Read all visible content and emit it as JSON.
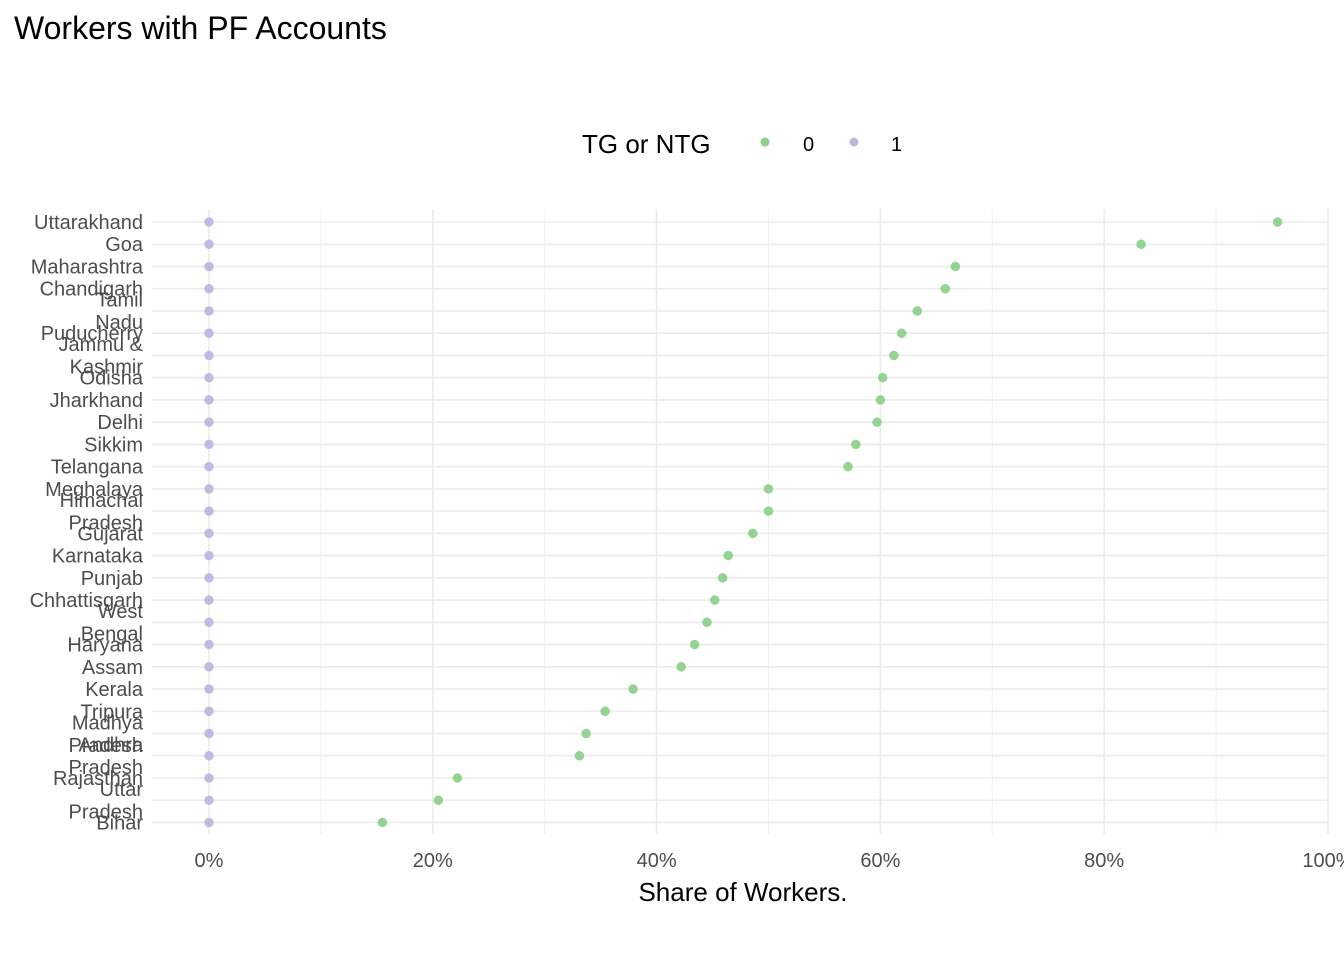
{
  "chart_data": {
    "type": "scatter",
    "title": "Workers with PF Accounts",
    "xlabel": "Share of Workers.",
    "ylabel": "",
    "xlim": [
      -0.05,
      1.0
    ],
    "x_ticks": [
      "0%",
      "20%",
      "40%",
      "60%",
      "80%",
      "100%"
    ],
    "x_tick_values": [
      0,
      0.2,
      0.4,
      0.6,
      0.8,
      1.0
    ],
    "grid": true,
    "legend": {
      "title": "TG or NTG",
      "position": "top"
    },
    "categories": [
      [
        "Uttarakhand"
      ],
      [
        "Goa"
      ],
      [
        "Maharashtra"
      ],
      [
        "Chandigarh"
      ],
      [
        "Tamil",
        "Nadu"
      ],
      [
        "Puducherry"
      ],
      [
        "Jammu &",
        "Kashmir"
      ],
      [
        "Odisha"
      ],
      [
        "Jharkhand"
      ],
      [
        "Delhi"
      ],
      [
        "Sikkim"
      ],
      [
        "Telangana"
      ],
      [
        "Meghalaya"
      ],
      [
        "Himachal",
        "Pradesh"
      ],
      [
        "Gujarat"
      ],
      [
        "Karnataka"
      ],
      [
        "Punjab"
      ],
      [
        "Chhattisgarh"
      ],
      [
        "West",
        "Bengal"
      ],
      [
        "Haryana"
      ],
      [
        "Assam"
      ],
      [
        "Kerala"
      ],
      [
        "Tripura"
      ],
      [
        "Madhya",
        "Pradesh"
      ],
      [
        "Andhra",
        "Pradesh"
      ],
      [
        "Rajasthan"
      ],
      [
        "Uttar",
        "Pradesh"
      ],
      [
        "Bihar"
      ]
    ],
    "series": [
      {
        "name": "0",
        "color": "#8fd18c",
        "values": [
          0.955,
          0.833,
          0.667,
          0.658,
          0.633,
          0.619,
          0.612,
          0.602,
          0.6,
          0.597,
          0.578,
          0.571,
          0.5,
          0.5,
          0.486,
          0.464,
          0.459,
          0.452,
          0.445,
          0.434,
          0.422,
          0.379,
          0.354,
          0.337,
          0.331,
          0.222,
          0.205,
          0.155
        ]
      },
      {
        "name": "1",
        "color": "#c2b5e0",
        "values": [
          0,
          0,
          0,
          0,
          0,
          0,
          0,
          0,
          0,
          0,
          0,
          0,
          0,
          0,
          0,
          0,
          0,
          0,
          0,
          0,
          0,
          0,
          0,
          0,
          0,
          0,
          0,
          0
        ]
      }
    ]
  }
}
